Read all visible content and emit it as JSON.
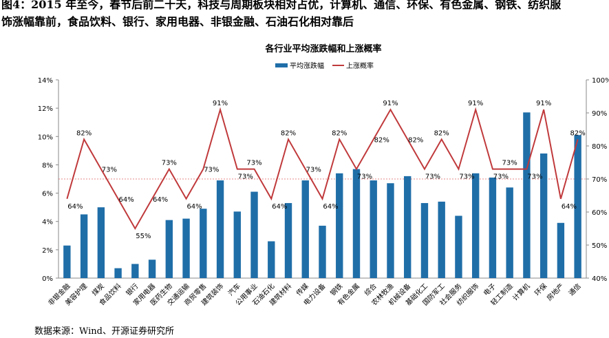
{
  "caption": {
    "line1": "图4：2015 年至今，春节后前二十天，科技与周期板块相对占优，计算机、通信、环保、有色金属、钢铁、纺织服",
    "line2": "饰涨幅靠前，食品饮料、银行、家用电器、非银金融、石油石化相对靠后"
  },
  "source": "数据来源：Wind、开源证券研究所",
  "colors": {
    "bar": "#1f6ea8",
    "line": "#c0393b",
    "refline": "#e06060",
    "axis": "#888888"
  },
  "chart_data": {
    "type": "bar",
    "title": "各行业平均涨跌幅和上涨概率",
    "legend": [
      "平均涨跌幅",
      "上涨概率"
    ],
    "legend_position": "top-center",
    "categories": [
      "非银金融",
      "美容护理",
      "煤炭",
      "食品饮料",
      "银行",
      "家用电器",
      "医药生物",
      "交通运输",
      "商贸零售",
      "建筑装饰",
      "汽车",
      "公用事业",
      "石油石化",
      "建筑材料",
      "传媒",
      "电力设备",
      "钢铁",
      "有色金属",
      "综合",
      "农林牧渔",
      "机械设备",
      "基础化工",
      "国防军工",
      "社会服务",
      "纺织服饰",
      "电子",
      "轻工制造",
      "计算机",
      "环保",
      "房地产",
      "通信"
    ],
    "series": [
      {
        "name": "平均涨跌幅",
        "axis": "left",
        "unit": "%",
        "values": [
          2.3,
          4.5,
          5.0,
          0.7,
          1.0,
          1.3,
          4.1,
          4.2,
          4.9,
          6.9,
          4.7,
          6.1,
          2.6,
          5.3,
          6.9,
          3.7,
          7.4,
          7.7,
          6.9,
          6.7,
          7.2,
          5.3,
          5.4,
          4.4,
          7.4,
          7.1,
          6.4,
          11.7,
          8.8,
          3.9,
          10.1
        ]
      },
      {
        "name": "上涨概率",
        "axis": "right",
        "unit": "%",
        "values": [
          64,
          82,
          73,
          64,
          55,
          64,
          73,
          64,
          73,
          91,
          73,
          73,
          64,
          82,
          73,
          64,
          82,
          73,
          82,
          91,
          82,
          73,
          82,
          73,
          91,
          73,
          73,
          73,
          91,
          64,
          82
        ]
      }
    ],
    "point_labels": [
      "64%",
      "82%",
      "73%",
      "64%",
      "55%",
      "64%",
      "73%",
      "64%",
      "73%",
      "91%",
      "73%",
      "73%",
      "64%",
      "82%",
      "73%",
      "64%",
      "82%",
      "73%",
      "82%",
      "91%",
      "82%",
      "73%",
      "82%",
      "73%",
      "91%",
      "73%",
      "73%",
      "73%",
      "91%",
      "64%",
      "82%"
    ],
    "left_axis": {
      "min": 0,
      "max": 14,
      "ticks": [
        "0%",
        "2%",
        "4%",
        "6%",
        "8%",
        "10%",
        "12%",
        "14%"
      ]
    },
    "right_axis": {
      "min": 40,
      "max": 100,
      "ticks": [
        "40%",
        "50%",
        "60%",
        "70%",
        "80%",
        "90%",
        "100%"
      ]
    },
    "reference_line": {
      "axis": "left",
      "value": 7.0,
      "style": "dashed"
    },
    "grid": false
  }
}
